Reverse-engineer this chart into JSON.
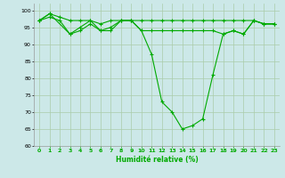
{
  "title": "",
  "xlabel": "Humidité relative (%)",
  "ylabel": "",
  "background_color": "#cce8e8",
  "grid_color": "#aaccaa",
  "line_color": "#00aa00",
  "marker_color": "#00aa00",
  "ylim": [
    60,
    102
  ],
  "xlim": [
    -0.5,
    23.5
  ],
  "yticks": [
    60,
    65,
    70,
    75,
    80,
    85,
    90,
    95,
    100
  ],
  "xticks": [
    0,
    1,
    2,
    3,
    4,
    5,
    6,
    7,
    8,
    9,
    10,
    11,
    12,
    13,
    14,
    15,
    16,
    17,
    18,
    19,
    20,
    21,
    22,
    23
  ],
  "series": [
    {
      "x": [
        0,
        1,
        2,
        3,
        4,
        5,
        6,
        7,
        8,
        9,
        10,
        11,
        12,
        13,
        14,
        15,
        16,
        17,
        18,
        19,
        20,
        21,
        22,
        23
      ],
      "y": [
        97,
        98,
        97,
        93,
        94,
        96,
        94,
        94,
        97,
        97,
        94,
        87,
        73,
        70,
        65,
        66,
        68,
        81,
        93,
        94,
        93,
        97,
        96,
        96
      ]
    },
    {
      "x": [
        0,
        1,
        2,
        3,
        4,
        5,
        6,
        7,
        8,
        9,
        10,
        11,
        12,
        13,
        14,
        15,
        16,
        17,
        18,
        19,
        20,
        21,
        22,
        23
      ],
      "y": [
        97,
        99,
        98,
        97,
        97,
        97,
        96,
        97,
        97,
        97,
        97,
        97,
        97,
        97,
        97,
        97,
        97,
        97,
        97,
        97,
        97,
        97,
        96,
        96
      ]
    },
    {
      "x": [
        0,
        1,
        3,
        4,
        5,
        6,
        7,
        8,
        9,
        10,
        11,
        12,
        13,
        14,
        15,
        16,
        17,
        18,
        19,
        20,
        21,
        22,
        23
      ],
      "y": [
        97,
        99,
        93,
        95,
        97,
        94,
        95,
        97,
        97,
        94,
        94,
        94,
        94,
        94,
        94,
        94,
        94,
        93,
        94,
        93,
        97,
        96,
        96
      ]
    }
  ]
}
